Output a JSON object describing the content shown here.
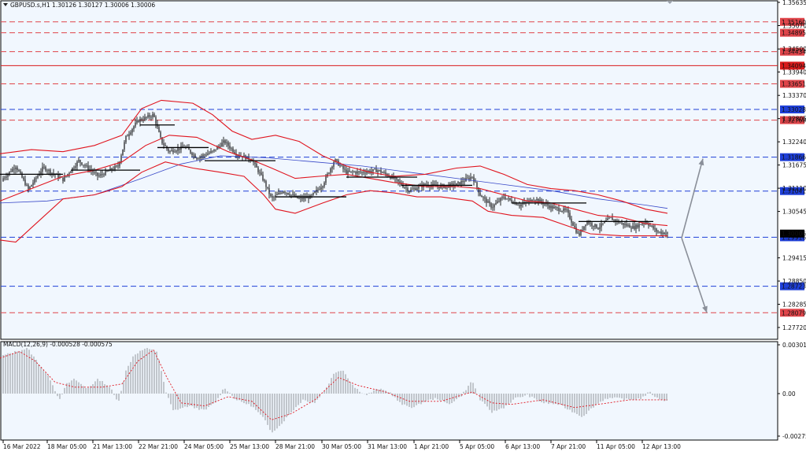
{
  "chart_data": [
    {
      "type": "candlestick",
      "symbol_header": "GBPUSD.s,H1  1.30126 1.30127 1.30006 1.30006",
      "ylim": [
        1.2772,
        1.35635
      ],
      "yticks": [
        "1.35635",
        "1.35070",
        "1.34500",
        "1.33940",
        "1.33370",
        "1.32805",
        "1.32240",
        "1.31675",
        "1.31110",
        "1.30545",
        "1.29415",
        "1.28850",
        "1.28285",
        "1.27720"
      ],
      "xticks": [
        "16 Mar 2022",
        "18 Mar 05:00",
        "21 Mar 13:00",
        "22 Mar 21:00",
        "24 Mar 05:00",
        "25 Mar 13:00",
        "28 Mar 21:00",
        "30 Mar 05:00",
        "31 Mar 13:00",
        "1 Apr 21:00",
        "5 Apr 05:00",
        "6 Apr 13:00",
        "7 Apr 21:00",
        "11 Apr 05:00",
        "12 Apr 13:00"
      ],
      "current_price": "1.30006",
      "levels": [
        {
          "value": 1.3516,
          "label": "1.35160",
          "color": "#e0454a",
          "style": "dashed"
        },
        {
          "value": 1.34895,
          "label": "1.34895",
          "color": "#e0454a",
          "style": "dashed"
        },
        {
          "value": 1.34434,
          "label": "1.34434",
          "color": "#e0454a",
          "style": "dashed"
        },
        {
          "value": 1.34094,
          "label": "1.34094",
          "color": "#d81b1b",
          "style": "solid"
        },
        {
          "value": 1.33651,
          "label": "1.33651",
          "color": "#e0454a",
          "style": "dashed"
        },
        {
          "value": 1.33028,
          "label": "1.33028",
          "color": "#1e3fd8",
          "style": "dashed"
        },
        {
          "value": 1.32768,
          "label": "1.32768",
          "color": "#e0454a",
          "style": "dashed"
        },
        {
          "value": 1.31866,
          "label": "1.31866",
          "color": "#1e3fd8",
          "style": "dashed"
        },
        {
          "value": 1.31041,
          "label": "1.31041",
          "color": "#1e3fd8",
          "style": "dashed"
        },
        {
          "value": 1.29916,
          "label": "1.29916",
          "color": "#1e3fd8",
          "style": "dashed"
        },
        {
          "value": 1.28723,
          "label": "1.28723",
          "color": "#1e3fd8",
          "style": "dashed"
        },
        {
          "value": 1.28079,
          "label": "1.28079",
          "color": "#e0454a",
          "style": "dashed"
        }
      ],
      "price_path": [
        [
          0,
          1.3128
        ],
        [
          20,
          1.3165
        ],
        [
          36,
          1.3108
        ],
        [
          55,
          1.3162
        ],
        [
          80,
          1.3132
        ],
        [
          100,
          1.3178
        ],
        [
          125,
          1.314
        ],
        [
          150,
          1.3165
        ],
        [
          160,
          1.3235
        ],
        [
          175,
          1.3275
        ],
        [
          195,
          1.329
        ],
        [
          205,
          1.3225
        ],
        [
          215,
          1.32
        ],
        [
          235,
          1.3212
        ],
        [
          250,
          1.3185
        ],
        [
          270,
          1.32
        ],
        [
          285,
          1.3225
        ],
        [
          300,
          1.3195
        ],
        [
          320,
          1.318
        ],
        [
          335,
          1.313
        ],
        [
          345,
          1.3085
        ],
        [
          360,
          1.3105
        ],
        [
          380,
          1.3085
        ],
        [
          395,
          1.309
        ],
        [
          410,
          1.312
        ],
        [
          425,
          1.318
        ],
        [
          440,
          1.315
        ],
        [
          460,
          1.315
        ],
        [
          480,
          1.3155
        ],
        [
          500,
          1.3135
        ],
        [
          520,
          1.3105
        ],
        [
          540,
          1.312
        ],
        [
          560,
          1.3115
        ],
        [
          580,
          1.312
        ],
        [
          600,
          1.314
        ],
        [
          610,
          1.3095
        ],
        [
          625,
          1.3065
        ],
        [
          640,
          1.309
        ],
        [
          660,
          1.307
        ],
        [
          680,
          1.3085
        ],
        [
          700,
          1.3065
        ],
        [
          720,
          1.3055
        ],
        [
          735,
          1.2995
        ],
        [
          745,
          1.303
        ],
        [
          760,
          1.3015
        ],
        [
          775,
          1.3038
        ],
        [
          790,
          1.3025
        ],
        [
          805,
          1.3015
        ],
        [
          820,
          1.303
        ],
        [
          835,
          1.3005
        ],
        [
          848,
          1.30006
        ]
      ],
      "bollinger_upper": [
        [
          0,
          1.3195
        ],
        [
          40,
          1.3205
        ],
        [
          80,
          1.32
        ],
        [
          120,
          1.3215
        ],
        [
          155,
          1.324
        ],
        [
          180,
          1.3305
        ],
        [
          205,
          1.3325
        ],
        [
          245,
          1.3318
        ],
        [
          270,
          1.329
        ],
        [
          295,
          1.325
        ],
        [
          320,
          1.323
        ],
        [
          350,
          1.324
        ],
        [
          380,
          1.3225
        ],
        [
          410,
          1.319
        ],
        [
          440,
          1.3165
        ],
        [
          470,
          1.315
        ],
        [
          500,
          1.314
        ],
        [
          540,
          1.3145
        ],
        [
          580,
          1.316
        ],
        [
          610,
          1.3165
        ],
        [
          640,
          1.3145
        ],
        [
          670,
          1.312
        ],
        [
          700,
          1.311
        ],
        [
          730,
          1.3105
        ],
        [
          760,
          1.3095
        ],
        [
          790,
          1.308
        ],
        [
          820,
          1.306
        ],
        [
          848,
          1.305
        ]
      ],
      "bollinger_lower": [
        [
          0,
          1.2985
        ],
        [
          20,
          1.298
        ],
        [
          40,
          1.3015
        ],
        [
          80,
          1.3085
        ],
        [
          120,
          1.3095
        ],
        [
          155,
          1.3115
        ],
        [
          180,
          1.315
        ],
        [
          210,
          1.3175
        ],
        [
          245,
          1.316
        ],
        [
          280,
          1.315
        ],
        [
          310,
          1.314
        ],
        [
          335,
          1.3095
        ],
        [
          350,
          1.306
        ],
        [
          375,
          1.305
        ],
        [
          410,
          1.3075
        ],
        [
          440,
          1.3095
        ],
        [
          470,
          1.3105
        ],
        [
          500,
          1.31
        ],
        [
          530,
          1.309
        ],
        [
          560,
          1.309
        ],
        [
          600,
          1.308
        ],
        [
          620,
          1.3055
        ],
        [
          650,
          1.3045
        ],
        [
          690,
          1.304
        ],
        [
          720,
          1.302
        ],
        [
          750,
          1.3
        ],
        [
          790,
          1.2995
        ],
        [
          820,
          1.2995
        ],
        [
          848,
          1.2995
        ]
      ],
      "bollinger_mid": [
        [
          0,
          1.308
        ],
        [
          40,
          1.311
        ],
        [
          80,
          1.314
        ],
        [
          120,
          1.3155
        ],
        [
          155,
          1.3175
        ],
        [
          185,
          1.3215
        ],
        [
          215,
          1.324
        ],
        [
          250,
          1.3235
        ],
        [
          290,
          1.32
        ],
        [
          320,
          1.318
        ],
        [
          345,
          1.316
        ],
        [
          375,
          1.3135
        ],
        [
          405,
          1.314
        ],
        [
          440,
          1.3145
        ],
        [
          470,
          1.3135
        ],
        [
          500,
          1.3125
        ],
        [
          540,
          1.3115
        ],
        [
          580,
          1.3115
        ],
        [
          610,
          1.311
        ],
        [
          640,
          1.3095
        ],
        [
          670,
          1.308
        ],
        [
          700,
          1.3075
        ],
        [
          730,
          1.306
        ],
        [
          760,
          1.3045
        ],
        [
          790,
          1.304
        ],
        [
          820,
          1.3025
        ],
        [
          848,
          1.302
        ]
      ],
      "moving_average": [
        [
          0,
          1.3075
        ],
        [
          60,
          1.308
        ],
        [
          120,
          1.3095
        ],
        [
          180,
          1.3135
        ],
        [
          230,
          1.317
        ],
        [
          280,
          1.319
        ],
        [
          340,
          1.3185
        ],
        [
          400,
          1.3175
        ],
        [
          460,
          1.3165
        ],
        [
          520,
          1.315
        ],
        [
          580,
          1.3135
        ],
        [
          640,
          1.312
        ],
        [
          700,
          1.3105
        ],
        [
          760,
          1.3085
        ],
        [
          820,
          1.307
        ],
        [
          848,
          1.3062
        ]
      ],
      "horizontal_markers": [
        [
          0,
          80,
          1.3145
        ],
        [
          90,
          178,
          1.3155
        ],
        [
          178,
          222,
          1.3265
        ],
        [
          200,
          265,
          1.321
        ],
        [
          260,
          350,
          1.3178
        ],
        [
          350,
          440,
          1.309
        ],
        [
          440,
          530,
          1.3138
        ],
        [
          510,
          600,
          1.3118
        ],
        [
          650,
          745,
          1.3075
        ],
        [
          735,
          830,
          1.303
        ]
      ],
      "projection_arrows": [
        [
          [
            866,
            1.299
          ],
          [
            893,
            1.3183
          ]
        ],
        [
          [
            866,
            1.299
          ],
          [
            898,
            1.2808
          ]
        ]
      ]
    },
    {
      "type": "histogram",
      "title": "MACD(12,26,9) -0.000528 -0.000575",
      "ylim": [
        -0.00275,
        0.003019
      ],
      "yticks": [
        "0.003019",
        "0.00",
        "-0.00275"
      ],
      "histogram_keypoints": [
        [
          0,
          0.0023
        ],
        [
          20,
          0.0026
        ],
        [
          35,
          0.0028
        ],
        [
          50,
          0.0018
        ],
        [
          65,
          0.0008
        ],
        [
          75,
          -0.0004
        ],
        [
          85,
          0.0006
        ],
        [
          95,
          0.0009
        ],
        [
          110,
          0.0003
        ],
        [
          125,
          0.0009
        ],
        [
          140,
          0.0004
        ],
        [
          150,
          -0.0006
        ],
        [
          160,
          0.0014
        ],
        [
          170,
          0.0024
        ],
        [
          185,
          0.0028
        ],
        [
          200,
          0.0026
        ],
        [
          210,
          0.0002
        ],
        [
          220,
          -0.0011
        ],
        [
          240,
          -0.0008
        ],
        [
          260,
          -0.0011
        ],
        [
          275,
          -0.0005
        ],
        [
          285,
          0.0004
        ],
        [
          300,
          -0.0004
        ],
        [
          320,
          -0.0008
        ],
        [
          335,
          -0.0016
        ],
        [
          345,
          -0.0025
        ],
        [
          355,
          -0.0021
        ],
        [
          370,
          -0.0012
        ],
        [
          385,
          -0.0004
        ],
        [
          400,
          -0.0006
        ],
        [
          415,
          0.0004
        ],
        [
          425,
          0.0013
        ],
        [
          435,
          0.0015
        ],
        [
          450,
          0.0004
        ],
        [
          465,
          -0.0001
        ],
        [
          480,
          0.0003
        ],
        [
          495,
          0.0001
        ],
        [
          510,
          -0.0007
        ],
        [
          525,
          -0.0009
        ],
        [
          540,
          -0.0005
        ],
        [
          555,
          -0.0003
        ],
        [
          570,
          -0.0007
        ],
        [
          585,
          -0.0002
        ],
        [
          600,
          0.0008
        ],
        [
          610,
          -0.0004
        ],
        [
          625,
          -0.0012
        ],
        [
          640,
          -0.0009
        ],
        [
          655,
          -0.0003
        ],
        [
          670,
          -0.0001
        ],
        [
          690,
          -0.0006
        ],
        [
          710,
          -0.0007
        ],
        [
          725,
          -0.0011
        ],
        [
          740,
          -0.0015
        ],
        [
          755,
          -0.0008
        ],
        [
          770,
          -0.0003
        ],
        [
          785,
          -0.0003
        ],
        [
          800,
          -0.0004
        ],
        [
          815,
          -0.0003
        ],
        [
          825,
          0.0001
        ],
        [
          835,
          -0.0003
        ],
        [
          848,
          -0.0005
        ]
      ],
      "signal_keypoints": [
        [
          0,
          0.0022
        ],
        [
          25,
          0.0026
        ],
        [
          45,
          0.002
        ],
        [
          70,
          0.0007
        ],
        [
          95,
          0.0004
        ],
        [
          130,
          0.0004
        ],
        [
          155,
          0.0006
        ],
        [
          175,
          0.002
        ],
        [
          195,
          0.0027
        ],
        [
          212,
          0.001
        ],
        [
          230,
          -0.0006
        ],
        [
          260,
          -0.0008
        ],
        [
          290,
          -0.0002
        ],
        [
          320,
          -0.0005
        ],
        [
          345,
          -0.0017
        ],
        [
          370,
          -0.0013
        ],
        [
          400,
          -0.0004
        ],
        [
          430,
          0.001
        ],
        [
          455,
          0.0005
        ],
        [
          490,
          0.0001
        ],
        [
          520,
          -0.0005
        ],
        [
          560,
          -0.0005
        ],
        [
          600,
          0.0001
        ],
        [
          625,
          -0.0006
        ],
        [
          650,
          -0.0007
        ],
        [
          690,
          -0.0004
        ],
        [
          730,
          -0.0009
        ],
        [
          760,
          -0.0007
        ],
        [
          800,
          -0.0004
        ],
        [
          848,
          -0.0004
        ]
      ]
    }
  ]
}
